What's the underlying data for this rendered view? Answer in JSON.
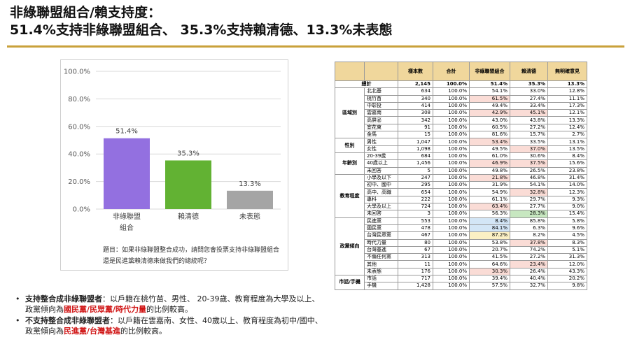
{
  "header": {
    "line1": "非綠聯盟組合/賴支持度：",
    "line2": "51.4%支持非綠聯盟組合、 35.3%支持賴清德、13.3%未表態"
  },
  "question": "題目：如果非綠聯盟整合成功，請問您會投票支持非綠聯盟組合還是民進黨賴清德來做我們的總統呢？",
  "notes": [
    {
      "lead": "支持整合成非綠聯盟者",
      "text": "：以戶籍在桃竹苗、男性、 20-39歲、教育程度為大學及以上、 政黨傾向為",
      "highlight": "國民黨/民眾黨/時代力量",
      "tail": "的比例較高。"
    },
    {
      "lead": "不支持整合成非綠聯盟者",
      "text": "：以戶籍在雲嘉南、女性、40歲以上、教育程度為初中/國中、 政黨傾向為",
      "highlight": "民進黨/台灣基進",
      "tail": "的比例較高。"
    }
  ],
  "chart_data": {
    "type": "bar",
    "categories": [
      "非綠聯盟組合",
      "賴清德",
      "未表態"
    ],
    "category_lines": [
      [
        "非綠聯盟",
        "組合"
      ],
      [
        "賴清德"
      ],
      [
        "未表態"
      ]
    ],
    "values": [
      51.4,
      35.3,
      13.3
    ],
    "value_labels": [
      "51.4%",
      "35.3%",
      "13.3%"
    ],
    "colors": [
      "#9370e0",
      "#62b233",
      "#a5a5a5"
    ],
    "ylim": [
      0,
      100
    ],
    "yticks": [
      "0.0%",
      "20.0%",
      "40.0%",
      "60.0%",
      "80.0%",
      "100.0%"
    ],
    "grid": true,
    "title": "",
    "xlabel": "",
    "ylabel": ""
  },
  "table": {
    "headers": [
      "",
      "",
      "樣本數",
      "合計",
      "非綠聯盟組合",
      "賴清德",
      "無明確意見"
    ],
    "total": [
      "總計",
      "2,145",
      "100.0%",
      "51.4%",
      "35.3%",
      "13.3%"
    ],
    "groups": [
      {
        "name": "區域別",
        "rows": [
          [
            "北北基",
            "634",
            "100.0%",
            "54.1%",
            "33.0%",
            "12.8%"
          ],
          [
            "桃竹苗",
            "340",
            "100.0%",
            "61.5%",
            "27.4%",
            "11.1%"
          ],
          [
            "中彰投",
            "414",
            "100.0%",
            "49.4%",
            "33.4%",
            "17.3%"
          ],
          [
            "雲嘉南",
            "308",
            "100.0%",
            "42.9%",
            "45.1%",
            "12.1%"
          ],
          [
            "高屏澎",
            "342",
            "100.0%",
            "43.0%",
            "43.8%",
            "13.3%"
          ],
          [
            "宜花東",
            "91",
            "100.0%",
            "60.5%",
            "27.2%",
            "12.4%"
          ],
          [
            "金馬",
            "15",
            "100.0%",
            "81.6%",
            "15.7%",
            "2.7%"
          ]
        ]
      },
      {
        "name": "性別",
        "rows": [
          [
            "男性",
            "1,047",
            "100.0%",
            "53.4%",
            "33.5%",
            "13.1%"
          ],
          [
            "女性",
            "1,098",
            "100.0%",
            "49.5%",
            "37.0%",
            "13.5%"
          ]
        ]
      },
      {
        "name": "年齡別",
        "rows": [
          [
            "20-39歲",
            "684",
            "100.0%",
            "61.0%",
            "30.6%",
            "8.4%"
          ],
          [
            "40歲以上",
            "1,456",
            "100.0%",
            "46.9%",
            "37.5%",
            "15.6%"
          ],
          [
            "未回答",
            "5",
            "100.0%",
            "49.8%",
            "26.5%",
            "23.8%"
          ]
        ]
      },
      {
        "name": "教育程度",
        "rows": [
          [
            "小學及以下",
            "247",
            "100.0%",
            "21.8%",
            "46.8%",
            "31.4%"
          ],
          [
            "初中、國中",
            "295",
            "100.0%",
            "31.9%",
            "54.1%",
            "14.0%"
          ],
          [
            "高中、高職",
            "654",
            "100.0%",
            "54.9%",
            "32.8%",
            "12.3%"
          ],
          [
            "專科",
            "222",
            "100.0%",
            "61.1%",
            "29.7%",
            "9.3%"
          ],
          [
            "大學及以上",
            "724",
            "100.0%",
            "63.4%",
            "27.7%",
            "9.0%"
          ],
          [
            "未回答",
            "3",
            "100.0%",
            "56.3%",
            "28.3%",
            "15.4%"
          ]
        ]
      },
      {
        "name": "政黨傾向",
        "rows": [
          [
            "民進黨",
            "553",
            "100.0%",
            "8.4%",
            "85.8%",
            "5.8%"
          ],
          [
            "國民黨",
            "478",
            "100.0%",
            "84.1%",
            "6.3%",
            "9.6%"
          ],
          [
            "台灣民眾黨",
            "467",
            "100.0%",
            "87.2%",
            "8.2%",
            "4.5%"
          ],
          [
            "時代力量",
            "80",
            "100.0%",
            "53.8%",
            "37.8%",
            "8.3%"
          ],
          [
            "台灣基進",
            "67",
            "100.0%",
            "20.7%",
            "74.2%",
            "5.1%"
          ],
          [
            "不偏任何黨",
            "313",
            "100.0%",
            "41.5%",
            "27.2%",
            "31.3%"
          ],
          [
            "其他",
            "11",
            "100.0%",
            "64.6%",
            "23.4%",
            "12.0%"
          ],
          [
            "未表態",
            "176",
            "100.0%",
            "30.3%",
            "26.4%",
            "43.3%"
          ]
        ]
      },
      {
        "name": "市話/手機",
        "rows": [
          [
            "市話",
            "717",
            "100.0%",
            "39.4%",
            "40.4%",
            "20.2%"
          ],
          [
            "手機",
            "1,428",
            "100.0%",
            "57.5%",
            "32.7%",
            "9.8%"
          ]
        ]
      }
    ],
    "highlights": {
      "red": "#fadcd6",
      "blue": "#d3e6f6",
      "green": "#c7e7c0",
      "yellow": "#fbf0c4",
      "cells": [
        [
          "1,1",
          "red"
        ],
        [
          "1,3",
          "red"
        ],
        [
          "1,7",
          "red"
        ],
        [
          "1,10",
          "red"
        ],
        [
          "1,12",
          "red"
        ],
        [
          "1,16",
          "red"
        ],
        [
          "2,3",
          "red"
        ],
        [
          "2,8",
          "red"
        ],
        [
          "2,10",
          "red"
        ],
        [
          "2,14",
          "red"
        ],
        [
          "2,17",
          "green"
        ],
        [
          "1,18",
          "blue"
        ],
        [
          "1,19",
          "blue"
        ],
        [
          "1,20",
          "yellow"
        ],
        [
          "2,21",
          "red"
        ],
        [
          "1,25",
          "red"
        ],
        [
          "2,24",
          "red"
        ]
      ]
    }
  }
}
